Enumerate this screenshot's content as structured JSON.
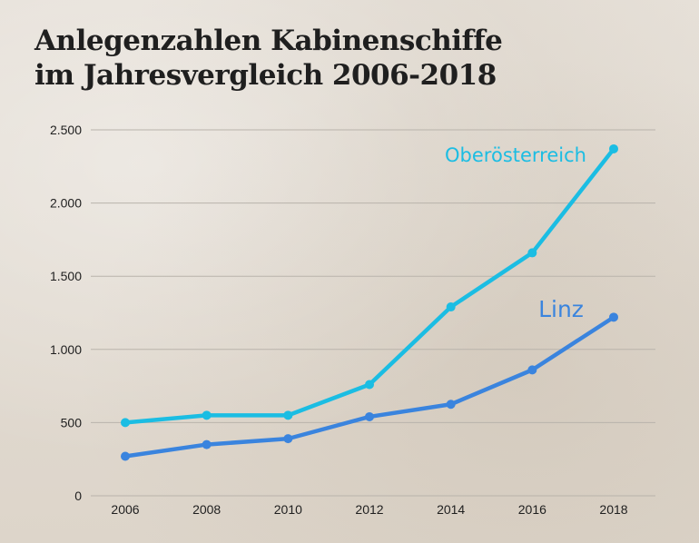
{
  "title_line1": "Anlegenzahlen Kabinenschiffe",
  "title_line2": "im Jahresvergleich 2006-2018",
  "colors": {
    "oberoesterreich": "#1bbde3",
    "linz": "#3a84de",
    "grid": "#b9b3ab",
    "text": "#1f1f1f"
  },
  "chart_data": {
    "type": "line",
    "title": "Anlegenzahlen Kabinenschiffe im Jahresvergleich 2006-2018",
    "xlabel": "",
    "ylabel": "",
    "x": [
      "2006",
      "2008",
      "2010",
      "2012",
      "2014",
      "2016",
      "2018"
    ],
    "ylim": [
      0,
      2500
    ],
    "yticks": [
      0,
      500,
      1000,
      1500,
      2000,
      2500
    ],
    "ytick_labels": [
      "0",
      "500",
      "1.000",
      "1.500",
      "2.000",
      "2.500"
    ],
    "grid": true,
    "series": [
      {
        "name": "Oberösterreich",
        "color": "#1bbde3",
        "values": [
          500,
          550,
          550,
          760,
          1290,
          1660,
          2370
        ]
      },
      {
        "name": "Linz",
        "color": "#3a84de",
        "values": [
          270,
          350,
          390,
          540,
          625,
          860,
          1220
        ]
      }
    ]
  }
}
